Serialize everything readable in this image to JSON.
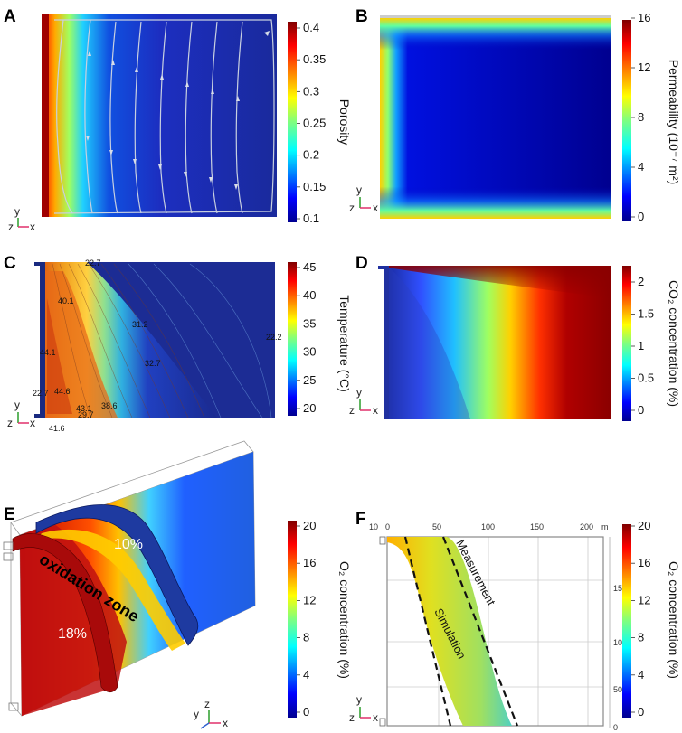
{
  "panels": [
    {
      "label": "A",
      "colorbar": {
        "title": "Porosity",
        "ticks": [
          "0.4",
          "0.35",
          "0.3",
          "0.25",
          "0.2",
          "0.15",
          "0.1"
        ]
      }
    },
    {
      "label": "B",
      "colorbar": {
        "title": "Permeability  (10⁻⁷ m²)",
        "ticks": [
          "16",
          "12",
          "8",
          "4",
          "0"
        ]
      }
    },
    {
      "label": "C",
      "colorbar": {
        "title": "Temperature  (°C)",
        "ticks": [
          "45",
          "40",
          "35",
          "30",
          "25",
          "20"
        ]
      }
    },
    {
      "label": "D",
      "colorbar": {
        "title": "CO₂ concentration (%)",
        "ticks": [
          "2",
          "1.5",
          "1",
          "0.5",
          "0"
        ]
      }
    },
    {
      "label": "E",
      "colorbar": {
        "title": "O₂ concentration (%)",
        "ticks": [
          "20",
          "16",
          "12",
          "8",
          "4",
          "0"
        ]
      }
    },
    {
      "label": "F",
      "colorbar": {
        "title": "O₂ concentration (%)",
        "ticks": [
          "20",
          "16",
          "12",
          "8",
          "4",
          "0"
        ]
      }
    }
  ],
  "axes": {
    "y": "y",
    "z": "z",
    "x": "x"
  },
  "contour_labels_c": [
    "22.7",
    "40.1",
    "31.2",
    "22.2",
    "32.7",
    "44.1",
    "22.7",
    "44.6",
    "43.1",
    "38.6",
    "41.6",
    "29.7"
  ],
  "panel_e": {
    "zone": "oxidation zone",
    "low": "10%",
    "high": "18%"
  },
  "panel_f": {
    "top_ticks": [
      "10",
      "0",
      "50",
      "100",
      "150",
      "200",
      "m"
    ],
    "right_ticks": [
      "150",
      "100",
      "50",
      "0"
    ],
    "measurement": "Measurement",
    "simulation": "Simulation"
  },
  "colors": {
    "jet_low": "#00008f",
    "jet_high": "#7f0000",
    "panel_bg": "#1a2a8e"
  }
}
